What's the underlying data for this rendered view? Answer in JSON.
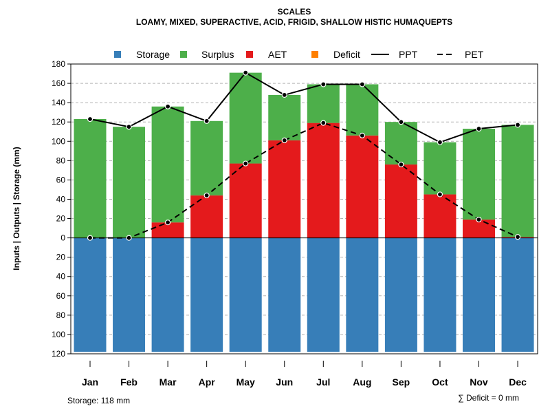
{
  "chart_data": {
    "type": "bar",
    "title": "SCALES",
    "subtitle": "LOAMY, MIXED, SUPERACTIVE, ACID, FRIGID, SHALLOW HISTIC HUMAQUEPTS",
    "ylabel": "Inputs | Outputs | Storage    (mm)",
    "categories": [
      "Jan",
      "Feb",
      "Mar",
      "Apr",
      "May",
      "Jun",
      "Jul",
      "Aug",
      "Sep",
      "Oct",
      "Nov",
      "Dec"
    ],
    "ylim": [
      -120,
      180
    ],
    "yticks": [
      180,
      160,
      140,
      120,
      100,
      80,
      60,
      40,
      20,
      0,
      -20,
      -40,
      -60,
      -80,
      -100,
      -120
    ],
    "ytick_labels": [
      "180",
      "160",
      "140",
      "120",
      "100",
      "80",
      "60",
      "40",
      "20",
      "0",
      "20",
      "40",
      "60",
      "80",
      "100",
      "120"
    ],
    "grid": true,
    "legend_position": "top",
    "legend": [
      {
        "label": "Storage",
        "kind": "square",
        "color": "#377EB8"
      },
      {
        "label": "Surplus",
        "kind": "square",
        "color": "#4DAF4A"
      },
      {
        "label": "AET",
        "kind": "square",
        "color": "#E41A1C"
      },
      {
        "label": "Deficit",
        "kind": "square",
        "color": "#FF7F00"
      },
      {
        "label": "PPT",
        "kind": "solid-line",
        "color": "#000000"
      },
      {
        "label": "PET",
        "kind": "dashed-line",
        "color": "#000000"
      }
    ],
    "series": [
      {
        "name": "Storage",
        "color": "#377EB8",
        "values": [
          118,
          118,
          118,
          118,
          118,
          118,
          118,
          118,
          118,
          118,
          118,
          118
        ]
      },
      {
        "name": "AET",
        "color": "#E41A1C",
        "values": [
          0,
          0,
          16,
          44,
          77,
          101,
          119,
          106,
          76,
          45,
          19,
          1
        ]
      },
      {
        "name": "Surplus",
        "color": "#4DAF4A",
        "values": [
          123,
          115,
          120,
          77,
          94,
          47,
          40,
          53,
          44,
          54,
          94,
          116
        ]
      },
      {
        "name": "Deficit",
        "color": "#FF7F00",
        "values": [
          0,
          0,
          0,
          0,
          0,
          0,
          0,
          0,
          0,
          0,
          0,
          0
        ]
      },
      {
        "name": "PPT",
        "color": "#000000",
        "values": [
          123,
          115,
          136,
          121,
          171,
          148,
          159,
          159,
          120,
          99,
          113,
          117
        ]
      },
      {
        "name": "PET",
        "color": "#000000",
        "values": [
          0,
          0,
          16,
          44,
          77,
          101,
          119,
          106,
          76,
          45,
          19,
          1
        ]
      }
    ],
    "annotations": {
      "storage_note": "Storage: 118 mm",
      "deficit_note": "∑ Deficit = 0 mm"
    }
  }
}
